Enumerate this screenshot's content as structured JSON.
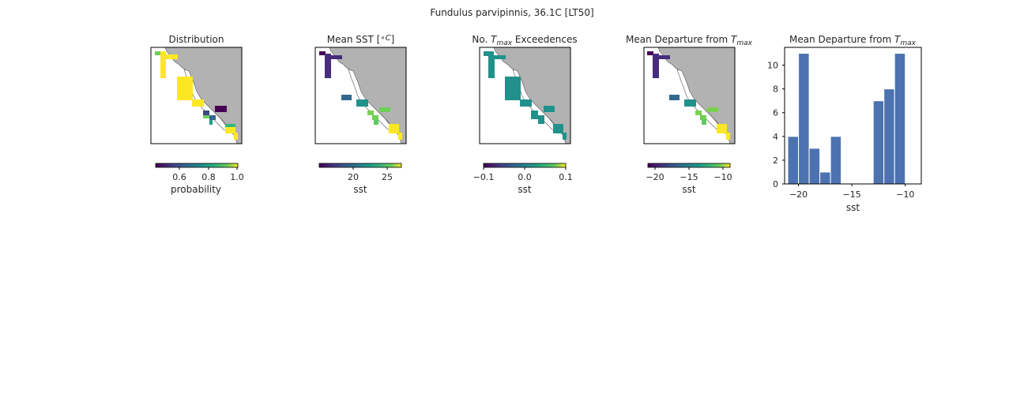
{
  "figure": {
    "suptitle": "Fundulus parvipinnis, 36.1C [LT50]"
  },
  "colors": {
    "land": "#b2b2b2",
    "coast": "#555555",
    "bar": "#4c72b0"
  },
  "panels": [
    {
      "title": "Distribution",
      "cbar_label": "probability",
      "cbar_ticks": [
        "0.6",
        "0.8",
        "1.0"
      ]
    },
    {
      "title": "Mean SST [",
      "title_unit": "∘C",
      "title_end": "]",
      "cbar_label": "sst",
      "cbar_ticks": [
        "20",
        "25"
      ]
    },
    {
      "title": "No. ",
      "title_sym": "T",
      "title_sub": "max",
      "title_end": " Exceedences",
      "cbar_label": "sst",
      "cbar_ticks": [
        "−0.1",
        "0.0",
        "0.1"
      ]
    },
    {
      "title": "Mean Departure from ",
      "title_sym": "T",
      "title_sub": "max",
      "cbar_label": "sst",
      "cbar_ticks": [
        "−20",
        "−15",
        "−10"
      ]
    }
  ],
  "chart_data": [
    {
      "type": "heatmap",
      "title": "Distribution",
      "colorbar": {
        "label": "probability",
        "range": [
          0.45,
          1.0
        ],
        "ticks": [
          0.6,
          0.8,
          1.0
        ]
      }
    },
    {
      "type": "heatmap",
      "title": "Mean SST [∘C]",
      "colorbar": {
        "label": "sst",
        "range": [
          15,
          27
        ],
        "ticks": [
          20,
          25
        ]
      }
    },
    {
      "type": "heatmap",
      "title": "No. Tmax Exceedences",
      "colorbar": {
        "label": "sst",
        "range": [
          -0.1,
          0.1
        ],
        "ticks": [
          -0.1,
          0.0,
          0.1
        ]
      }
    },
    {
      "type": "heatmap",
      "title": "Mean Departure from Tmax",
      "colorbar": {
        "label": "sst",
        "range": [
          -21,
          -9
        ],
        "ticks": [
          -20,
          -15,
          -10
        ]
      }
    },
    {
      "type": "bar",
      "title": "Mean Departure from Tmax",
      "xlabel": "sst",
      "ylabel": "",
      "xlim": [
        -21.3,
        -8.5
      ],
      "ylim": [
        0,
        11.5
      ],
      "x_ticks": [
        "−20",
        "−15",
        "−10"
      ],
      "y_ticks": [
        "0",
        "2",
        "4",
        "6",
        "8",
        "10"
      ],
      "bin_width": 1.0,
      "bins": [
        {
          "x": -20.5,
          "count": 4
        },
        {
          "x": -19.5,
          "count": 11
        },
        {
          "x": -18.5,
          "count": 3
        },
        {
          "x": -17.5,
          "count": 1
        },
        {
          "x": -16.5,
          "count": 4
        },
        {
          "x": -15.5,
          "count": 0
        },
        {
          "x": -14.5,
          "count": 0
        },
        {
          "x": -13.5,
          "count": 0
        },
        {
          "x": -12.5,
          "count": 7
        },
        {
          "x": -11.5,
          "count": 8
        },
        {
          "x": -10.5,
          "count": 11
        }
      ]
    }
  ]
}
